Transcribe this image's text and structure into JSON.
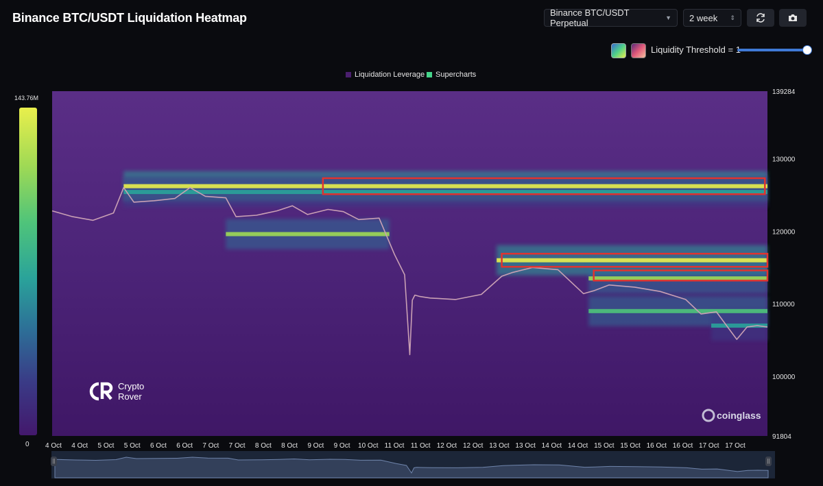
{
  "header": {
    "title": "Binance BTC/USDT Liquidation Heatmap",
    "pair_select": "Binance BTC/USDT Perpetual",
    "range_select": "2 week",
    "refresh_icon": "refresh-icon",
    "camera_icon": "camera-icon"
  },
  "controls": {
    "threshold_label": "Liquidity Threshold = 1",
    "threshold_value": 1,
    "palette_1": [
      "#3a6bd1",
      "#4fd08a",
      "#e7f04a"
    ],
    "palette_2": [
      "#5b2a7a",
      "#e05a7a",
      "#f6c0a0"
    ]
  },
  "legend": {
    "items": [
      {
        "label": "Liquidation Leverage",
        "color": "#4a1f6e"
      },
      {
        "label": "Supercharts",
        "color": "#45d48a"
      }
    ]
  },
  "colorbar": {
    "max_label": "143.76M",
    "min_label": "0"
  },
  "watermarks": {
    "brand_line1": "Crypto",
    "brand_line2": "Rover",
    "source": "coinglass"
  },
  "chart_data": {
    "type": "heatmap",
    "title": "Binance BTC/USDT Liquidation Heatmap",
    "ylim": [
      91804,
      139284
    ],
    "y_tick_labels": [
      "139284",
      "130000",
      "120000",
      "110000",
      "100000",
      "91804"
    ],
    "y_tick_values": [
      139284,
      130000,
      120000,
      110000,
      100000,
      91804
    ],
    "x_tick_labels": [
      "4 Oct",
      "4 Oct",
      "5 Oct",
      "5 Oct",
      "6 Oct",
      "6 Oct",
      "7 Oct",
      "7 Oct",
      "8 Oct",
      "8 Oct",
      "9 Oct",
      "9 Oct",
      "10 Oct",
      "11 Oct",
      "11 Oct",
      "12 Oct",
      "12 Oct",
      "13 Oct",
      "13 Oct",
      "14 Oct",
      "14 Oct",
      "15 Oct",
      "15 Oct",
      "16 Oct",
      "16 Oct",
      "17 Oct",
      "17 Oct"
    ],
    "x_range_days": [
      3.6,
      17.6
    ],
    "colorscale": [
      "#43186c",
      "#3a3a86",
      "#2d6e97",
      "#2aa39a",
      "#4fc47a",
      "#9ed955",
      "#e9ef4c"
    ],
    "liquidity_bands": [
      {
        "price": 126200,
        "from_day": 5.0,
        "to_day": 17.6,
        "intensity": 0.95
      },
      {
        "price": 125400,
        "from_day": 5.0,
        "to_day": 17.6,
        "intensity": 0.55
      },
      {
        "price": 119600,
        "from_day": 7.0,
        "to_day": 10.2,
        "intensity": 0.75
      },
      {
        "price": 116000,
        "from_day": 12.3,
        "to_day": 17.6,
        "intensity": 0.95
      },
      {
        "price": 113500,
        "from_day": 14.1,
        "to_day": 17.6,
        "intensity": 0.85
      },
      {
        "price": 109000,
        "from_day": 14.1,
        "to_day": 17.6,
        "intensity": 0.6
      },
      {
        "price": 107000,
        "from_day": 16.5,
        "to_day": 17.6,
        "intensity": 0.5
      }
    ],
    "highlight_boxes": [
      {
        "price_low": 125100,
        "price_high": 127300,
        "from_day": 8.9,
        "to_day": 17.55
      },
      {
        "price_low": 115100,
        "price_high": 116900,
        "from_day": 12.4,
        "to_day": 17.6
      },
      {
        "price_low": 113200,
        "price_high": 114600,
        "from_day": 14.2,
        "to_day": 17.6
      }
    ],
    "price_series": {
      "name": "",
      "x_days": [
        3.6,
        4.0,
        4.4,
        4.8,
        5.0,
        5.2,
        5.6,
        6.0,
        6.3,
        6.6,
        7.0,
        7.2,
        7.6,
        8.0,
        8.3,
        8.6,
        9.0,
        9.3,
        9.6,
        10.0,
        10.3,
        10.5,
        10.6,
        10.65,
        10.7,
        10.8,
        11.0,
        11.5,
        12.0,
        12.4,
        12.6,
        13.0,
        13.5,
        14.0,
        14.2,
        14.5,
        15.0,
        15.5,
        16.0,
        16.3,
        16.6,
        17.0,
        17.2,
        17.4,
        17.6
      ],
      "values": [
        122800,
        122000,
        121500,
        122500,
        126000,
        124000,
        124200,
        124500,
        126000,
        124800,
        124600,
        122000,
        122200,
        122800,
        123500,
        122300,
        123000,
        122700,
        121600,
        121800,
        116800,
        114000,
        103000,
        110500,
        111200,
        111000,
        110800,
        110600,
        111300,
        113800,
        114300,
        115000,
        114700,
        111400,
        111800,
        112600,
        112300,
        111700,
        110600,
        108600,
        108900,
        105100,
        106800,
        107000,
        106800
      ]
    },
    "navigator_days": [
      3.6,
      17.6
    ]
  }
}
